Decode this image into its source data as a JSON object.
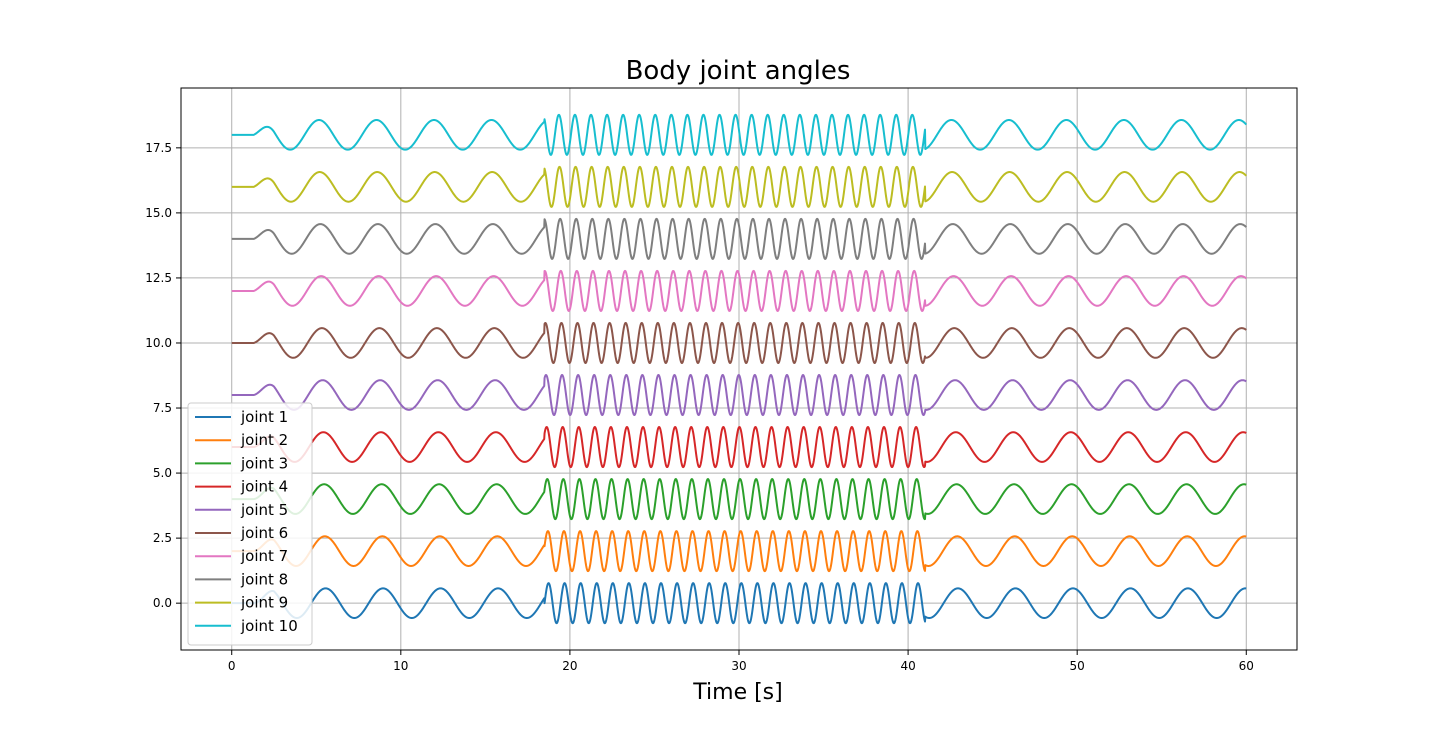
{
  "chart_data": {
    "type": "line",
    "title": "Body joint angles",
    "xlabel": "Time [s]",
    "ylabel": "",
    "xlim": [
      -3,
      63
    ],
    "ylim": [
      -1.8,
      19.8
    ],
    "x_ticks": [
      0,
      10,
      20,
      30,
      40,
      50,
      60
    ],
    "x_tick_labels": [
      "0",
      "10",
      "20",
      "30",
      "40",
      "50",
      "60"
    ],
    "y_ticks": [
      0.0,
      2.5,
      5.0,
      7.5,
      10.0,
      12.5,
      15.0,
      17.5
    ],
    "y_tick_labels": [
      "0.0",
      "2.5",
      "5.0",
      "7.5",
      "10.0",
      "12.5",
      "15.0",
      "17.5"
    ],
    "grid": true,
    "legend_position": "lower-left",
    "signal": {
      "t_start": 0,
      "t_end": 60,
      "initial_flat_until": 1.3,
      "slow_period": 3.4,
      "slow_amplitude": 0.57,
      "fast_segment": [
        18.5,
        41.0
      ],
      "fast_period": 0.95,
      "fast_amplitude": 0.77
    },
    "series": [
      {
        "name": "joint 1",
        "offset": 0,
        "color": "#1f77b4"
      },
      {
        "name": "joint 2",
        "offset": 2,
        "color": "#ff7f0e"
      },
      {
        "name": "joint 3",
        "offset": 4,
        "color": "#2ca02c"
      },
      {
        "name": "joint 4",
        "offset": 6,
        "color": "#d62728"
      },
      {
        "name": "joint 5",
        "offset": 8,
        "color": "#9467bd"
      },
      {
        "name": "joint 6",
        "offset": 10,
        "color": "#8c564b"
      },
      {
        "name": "joint 7",
        "offset": 12,
        "color": "#e377c2"
      },
      {
        "name": "joint 8",
        "offset": 14,
        "color": "#7f7f7f"
      },
      {
        "name": "joint 9",
        "offset": 16,
        "color": "#bcbd22"
      },
      {
        "name": "joint 10",
        "offset": 18,
        "color": "#17becf"
      }
    ]
  }
}
